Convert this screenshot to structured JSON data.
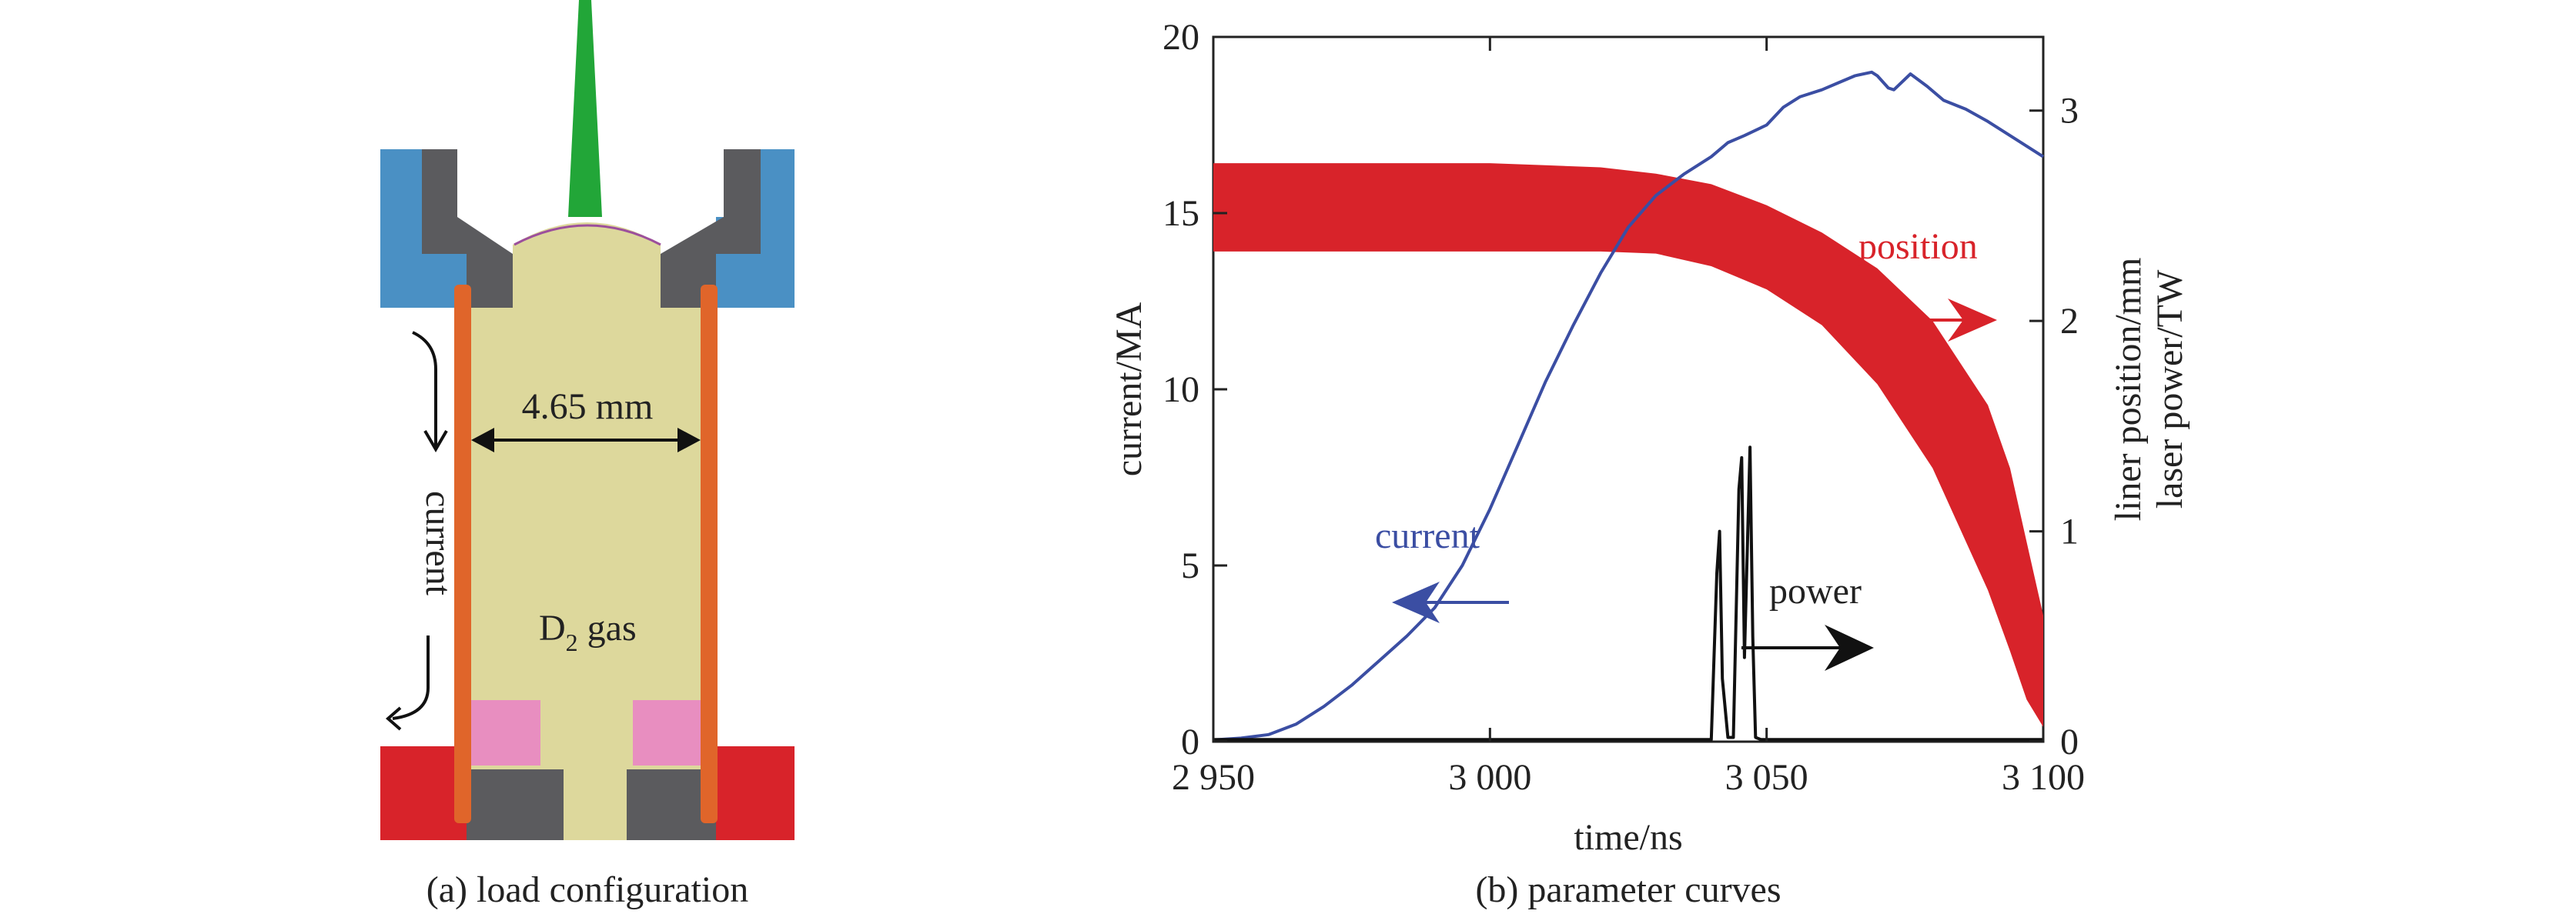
{
  "panel_a": {
    "dimension_label": "4.65 mm",
    "gas_label_main": "D",
    "gas_label_sub": "2",
    "gas_label_rest": " gas",
    "current_label": "current",
    "caption": "(a) load configuration",
    "colors": {
      "electrode_top": "#4a90c4",
      "electrode_bottom": "#d8232a",
      "insulator": "#5b5b5e",
      "liner": "#e0652a",
      "gas": "#ddd89c",
      "ring": "#e88ec0",
      "laser": "#22a638",
      "window": "#9c4f9c"
    }
  },
  "panel_b": {
    "caption": "(b) parameter curves",
    "annotations": {
      "current": "current",
      "position": "position",
      "power": "power"
    },
    "colors": {
      "current": "#3b4ea3",
      "position": "#d8232a",
      "power": "#111111"
    }
  },
  "chart_data": {
    "type": "line",
    "xlabel": "time/ns",
    "ylabel_left": "current/MA",
    "ylabel_right": [
      "liner position/mm",
      "laser power/TW"
    ],
    "xlim": [
      2950,
      3100
    ],
    "ylim_left": [
      0,
      20
    ],
    "ylim_right": [
      0,
      3.35
    ],
    "x_ticks": [
      2950,
      3000,
      3050,
      3100
    ],
    "x_tick_labels": [
      "2 950",
      "3 000",
      "3 050",
      "3 100"
    ],
    "y_left_ticks": [
      0,
      5,
      10,
      15,
      20
    ],
    "y_left_tick_labels": [
      "0",
      "5",
      "10",
      "15",
      "20"
    ],
    "y_right_ticks": [
      0,
      1,
      2,
      3
    ],
    "y_right_tick_labels": [
      "0",
      "1",
      "2",
      "3"
    ],
    "series": [
      {
        "name": "current",
        "axis": "left",
        "x": [
          2950,
          2955,
          2960,
          2965,
          2970,
          2975,
          2980,
          2985,
          2990,
          2995,
          3000,
          3005,
          3010,
          3015,
          3020,
          3025,
          3030,
          3035,
          3040,
          3043,
          3046,
          3050,
          3053,
          3056,
          3060,
          3063,
          3066,
          3069,
          3070,
          3072,
          3073,
          3075,
          3076,
          3079,
          3082,
          3086,
          3090,
          3095,
          3100
        ],
        "values": [
          0.05,
          0.1,
          0.2,
          0.5,
          1.0,
          1.6,
          2.3,
          3.0,
          3.8,
          5.0,
          6.6,
          8.4,
          10.2,
          11.8,
          13.3,
          14.6,
          15.5,
          16.1,
          16.6,
          17.0,
          17.2,
          17.5,
          18.0,
          18.3,
          18.5,
          18.7,
          18.9,
          19.0,
          18.9,
          18.55,
          18.5,
          18.8,
          18.95,
          18.6,
          18.2,
          17.95,
          17.6,
          17.1,
          16.6
        ]
      },
      {
        "name": "position",
        "axis": "right",
        "x": [
          2950,
          2970,
          2990,
          3000,
          3010,
          3020,
          3030,
          3040,
          3050,
          3060,
          3070,
          3080,
          3090,
          3094,
          3097,
          3100
        ],
        "upper": [
          2.75,
          2.75,
          2.75,
          2.75,
          2.74,
          2.73,
          2.7,
          2.65,
          2.55,
          2.42,
          2.25,
          2.0,
          1.6,
          1.3,
          0.95,
          0.6
        ],
        "lower": [
          2.33,
          2.33,
          2.33,
          2.33,
          2.33,
          2.33,
          2.32,
          2.26,
          2.15,
          1.98,
          1.7,
          1.3,
          0.72,
          0.43,
          0.2,
          0.07
        ]
      },
      {
        "name": "power",
        "axis": "right",
        "x": [
          2950,
          3040,
          3041,
          3041.5,
          3042,
          3043,
          3044,
          3045,
          3045.5,
          3046,
          3047,
          3047.5,
          3048,
          3049,
          3050,
          3100
        ],
        "values": [
          0.01,
          0.01,
          0.8,
          1.0,
          0.3,
          0.02,
          0.02,
          1.2,
          1.35,
          0.4,
          1.4,
          0.5,
          0.02,
          0.01,
          0.01,
          0.01
        ]
      }
    ]
  }
}
